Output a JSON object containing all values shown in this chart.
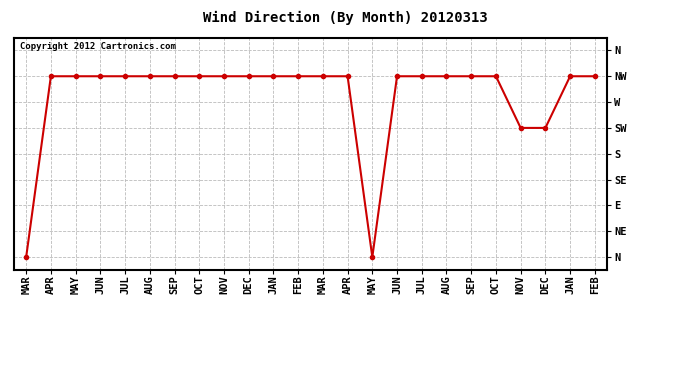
{
  "title": "Wind Direction (By Month) 20120313",
  "copyright_text": "Copyright 2012 Cartronics.com",
  "x_labels": [
    "MAR",
    "APR",
    "MAY",
    "JUN",
    "JUL",
    "AUG",
    "SEP",
    "OCT",
    "NOV",
    "DEC",
    "JAN",
    "FEB",
    "MAR",
    "APR",
    "MAY",
    "JUN",
    "JUL",
    "AUG",
    "SEP",
    "OCT",
    "NOV",
    "DEC",
    "JAN",
    "FEB"
  ],
  "y_labels": [
    "N",
    "NE",
    "E",
    "SE",
    "S",
    "SW",
    "W",
    "NW",
    "N"
  ],
  "y_values": [
    0,
    1,
    2,
    3,
    4,
    5,
    6,
    7,
    8
  ],
  "data_values": [
    0,
    7,
    7,
    7,
    7,
    7,
    7,
    7,
    7,
    7,
    7,
    7,
    7,
    7,
    0,
    7,
    7,
    7,
    7,
    7,
    5,
    5,
    7,
    7
  ],
  "line_color": "#cc0000",
  "marker": "o",
  "marker_size": 3,
  "background_color": "#ffffff",
  "plot_background": "#ffffff",
  "grid_color": "#bbbbbb",
  "title_fontsize": 10,
  "copyright_fontsize": 6.5,
  "tick_fontsize": 7.5,
  "ylim_min": -0.5,
  "ylim_max": 8.5
}
